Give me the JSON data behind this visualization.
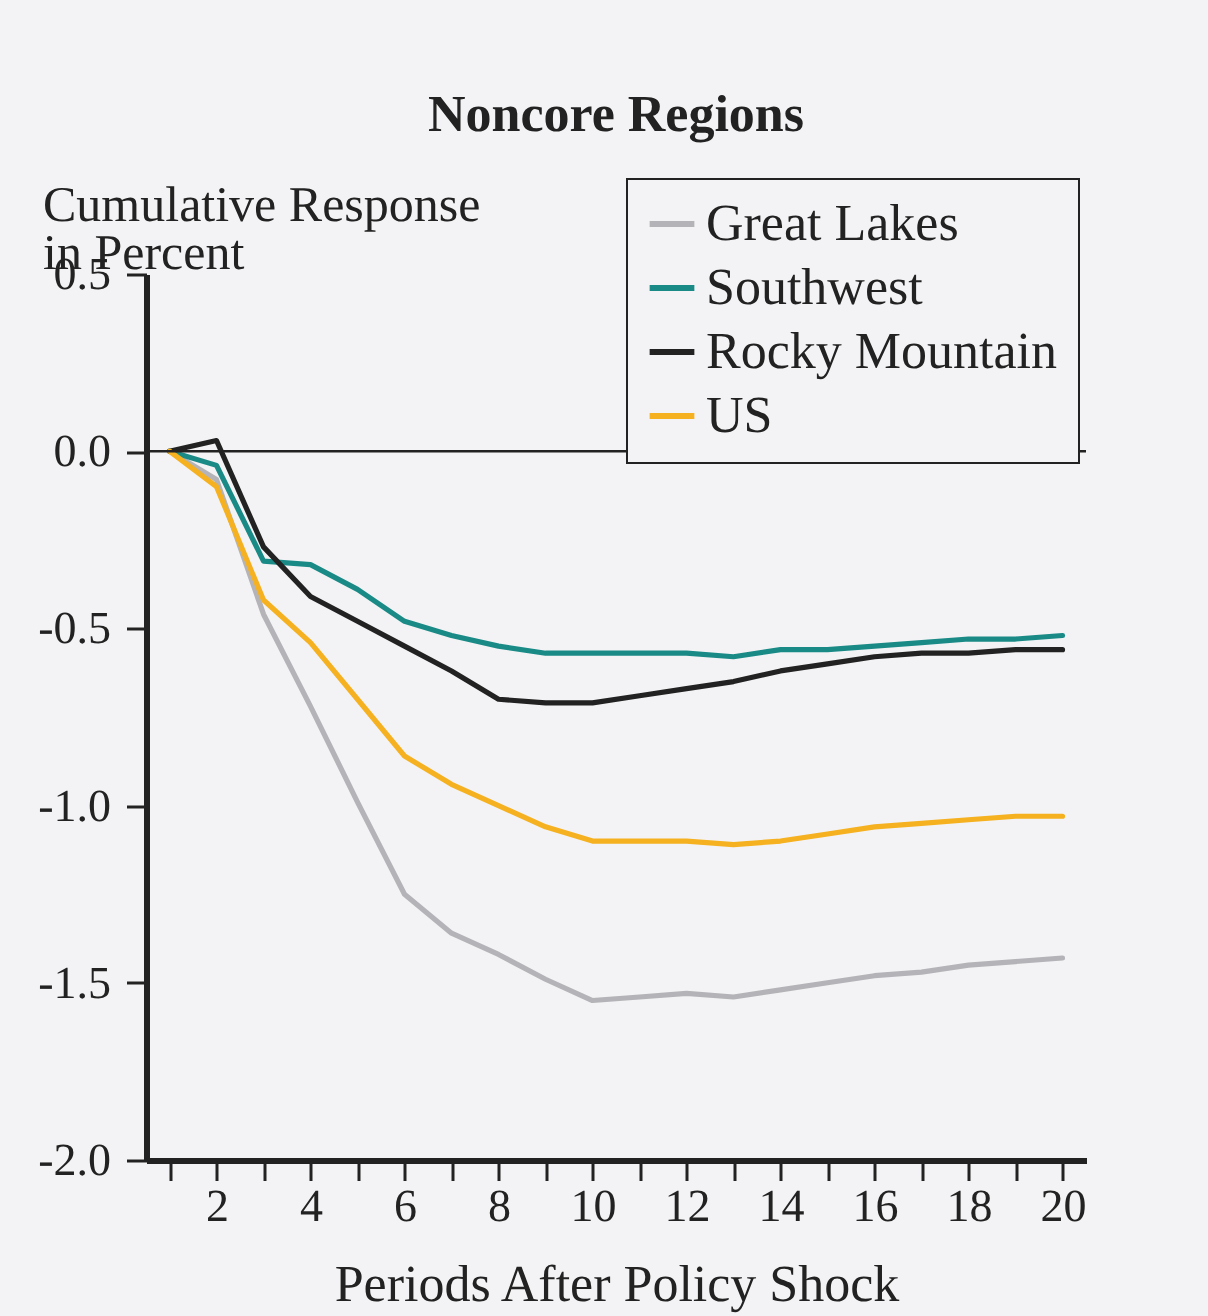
{
  "chart_data": {
    "type": "line",
    "title": "Noncore Regions",
    "xlabel": "Periods After Policy Shock",
    "ylabel": "Cumulative Response\nin Percent",
    "x": [
      1,
      2,
      3,
      4,
      5,
      6,
      7,
      8,
      9,
      10,
      11,
      12,
      13,
      14,
      15,
      16,
      17,
      18,
      19,
      20
    ],
    "series": [
      {
        "name": "Great Lakes",
        "color": "#b4b4b8",
        "values": [
          0,
          -0.08,
          -0.46,
          -0.72,
          -0.99,
          -1.25,
          -1.36,
          -1.42,
          -1.49,
          -1.55,
          -1.54,
          -1.53,
          -1.54,
          -1.52,
          -1.5,
          -1.48,
          -1.47,
          -1.45,
          -1.44,
          -1.43
        ]
      },
      {
        "name": "Southwest",
        "color": "#1a8a86",
        "values": [
          0,
          -0.04,
          -0.31,
          -0.32,
          -0.39,
          -0.48,
          -0.52,
          -0.55,
          -0.57,
          -0.57,
          -0.57,
          -0.57,
          -0.58,
          -0.56,
          -0.56,
          -0.55,
          -0.54,
          -0.53,
          -0.53,
          -0.52
        ]
      },
      {
        "name": "Rocky Mountain",
        "color": "#222222",
        "values": [
          0,
          0.03,
          -0.27,
          -0.41,
          -0.48,
          -0.55,
          -0.62,
          -0.7,
          -0.71,
          -0.71,
          -0.69,
          -0.67,
          -0.65,
          -0.62,
          -0.6,
          -0.58,
          -0.57,
          -0.57,
          -0.56,
          -0.56
        ]
      },
      {
        "name": "US",
        "color": "#f5b120",
        "values": [
          0,
          -0.1,
          -0.42,
          -0.54,
          -0.7,
          -0.86,
          -0.94,
          -1.0,
          -1.06,
          -1.1,
          -1.1,
          -1.1,
          -1.11,
          -1.1,
          -1.08,
          -1.06,
          -1.05,
          -1.04,
          -1.03,
          -1.03
        ]
      }
    ],
    "xlim": [
      0.5,
      20.5
    ],
    "xticks": [
      {
        "value": 1,
        "label": null
      },
      2,
      {
        "value": 3,
        "label": null
      },
      4,
      {
        "value": 5,
        "label": null
      },
      6,
      {
        "value": 7,
        "label": null
      },
      8,
      {
        "value": 9,
        "label": null
      },
      10,
      {
        "value": 11,
        "label": null
      },
      12,
      {
        "value": 13,
        "label": null
      },
      14,
      {
        "value": 15,
        "label": null
      },
      16,
      {
        "value": 17,
        "label": null
      },
      18,
      {
        "value": 19,
        "label": null
      },
      20
    ],
    "ylim": [
      -2,
      0.5
    ],
    "yticks": [
      {
        "value": -2,
        "label": "-2.0"
      },
      {
        "value": -1.5,
        "label": "-1.5"
      },
      {
        "value": -1,
        "label": "-1.0"
      },
      -0.5,
      {
        "value": 0,
        "label": "0.0"
      },
      0.5
    ],
    "ref_lines": [
      {
        "axis": "y",
        "value": 0,
        "color": "#222222"
      }
    ],
    "legend": "top right",
    "grid": false,
    "marker": "none",
    "line_style": "solid"
  }
}
